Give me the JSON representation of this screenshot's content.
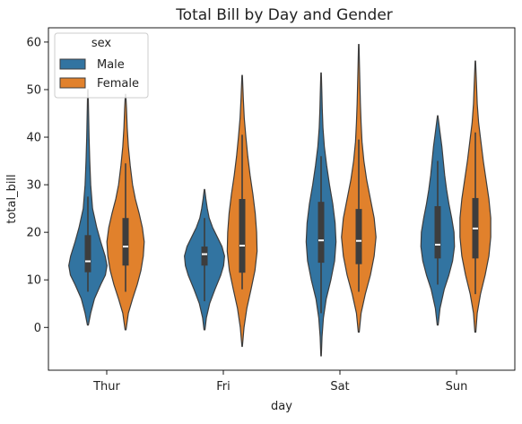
{
  "chart_data": {
    "type": "violin",
    "title": "Total Bill by Day and Gender",
    "xlabel": "day",
    "ylabel": "total_bill",
    "categories": [
      "Thur",
      "Fri",
      "Sat",
      "Sun"
    ],
    "ylim": [
      -9,
      63
    ],
    "yticks": [
      0,
      10,
      20,
      30,
      40,
      50,
      60
    ],
    "grid": false,
    "legend": {
      "title": "sex",
      "position": "top-left"
    },
    "colors": {
      "Male": "#3274a1",
      "Female": "#e1812c",
      "edge": "#3d3d3d",
      "box": "#3d3d3d",
      "median": "#ffffff"
    },
    "series": [
      {
        "name": "Male",
        "violins": [
          {
            "min": 0.5,
            "max": 50,
            "q1": 11.6,
            "median": 13.9,
            "q3": 19.4,
            "whisker_low": 7.5,
            "whisker_high": 27.5,
            "width": [
              [
                0.5,
                0.02
              ],
              [
                3,
                0.12
              ],
              [
                6,
                0.28
              ],
              [
                9,
                0.55
              ],
              [
                11,
                0.75
              ],
              [
                13,
                0.82
              ],
              [
                15,
                0.74
              ],
              [
                18,
                0.55
              ],
              [
                21,
                0.38
              ],
              [
                25,
                0.2
              ],
              [
                30,
                0.12
              ],
              [
                35,
                0.08
              ],
              [
                40,
                0.05
              ],
              [
                45,
                0.03
              ],
              [
                50,
                0.01
              ]
            ]
          },
          {
            "min": -0.5,
            "max": 29,
            "q1": 13.0,
            "median": 15.4,
            "q3": 17.0,
            "whisker_low": 5.5,
            "whisker_high": 23,
            "width": [
              [
                -0.5,
                0.02
              ],
              [
                2,
                0.08
              ],
              [
                5,
                0.22
              ],
              [
                8,
                0.45
              ],
              [
                11,
                0.7
              ],
              [
                13,
                0.82
              ],
              [
                15,
                0.86
              ],
              [
                17,
                0.75
              ],
              [
                19,
                0.55
              ],
              [
                21,
                0.35
              ],
              [
                23,
                0.2
              ],
              [
                25,
                0.12
              ],
              [
                27,
                0.06
              ],
              [
                29,
                0.01
              ]
            ]
          },
          {
            "min": -6,
            "max": 53.5,
            "q1": 13.6,
            "median": 18.3,
            "q3": 26.4,
            "whisker_low": 3,
            "whisker_high": 36,
            "width": [
              [
                -6,
                0.01
              ],
              [
                -2,
                0.04
              ],
              [
                2,
                0.1
              ],
              [
                6,
                0.22
              ],
              [
                10,
                0.42
              ],
              [
                14,
                0.58
              ],
              [
                18,
                0.64
              ],
              [
                22,
                0.6
              ],
              [
                26,
                0.5
              ],
              [
                30,
                0.36
              ],
              [
                34,
                0.24
              ],
              [
                38,
                0.14
              ],
              [
                42,
                0.08
              ],
              [
                46,
                0.05
              ],
              [
                50,
                0.03
              ],
              [
                53.5,
                0.01
              ]
            ]
          },
          {
            "min": 0.5,
            "max": 44.5,
            "q1": 14.5,
            "median": 17.4,
            "q3": 25.5,
            "whisker_low": 9,
            "whisker_high": 35,
            "width": [
              [
                0.5,
                0.02
              ],
              [
                4,
                0.1
              ],
              [
                8,
                0.28
              ],
              [
                11,
                0.48
              ],
              [
                14,
                0.64
              ],
              [
                17,
                0.72
              ],
              [
                20,
                0.7
              ],
              [
                23,
                0.6
              ],
              [
                26,
                0.48
              ],
              [
                29,
                0.38
              ],
              [
                32,
                0.3
              ],
              [
                35,
                0.24
              ],
              [
                38,
                0.18
              ],
              [
                41,
                0.1
              ],
              [
                44.5,
                0.01
              ]
            ]
          }
        ]
      },
      {
        "name": "Female",
        "violins": [
          {
            "min": -0.5,
            "max": 49,
            "q1": 13.0,
            "median": 17.0,
            "q3": 23.0,
            "whisker_low": 7.5,
            "whisker_high": 34.5,
            "width": [
              [
                -0.5,
                0.02
              ],
              [
                3,
                0.12
              ],
              [
                6,
                0.3
              ],
              [
                9,
                0.5
              ],
              [
                12,
                0.66
              ],
              [
                15,
                0.76
              ],
              [
                18,
                0.8
              ],
              [
                21,
                0.72
              ],
              [
                24,
                0.58
              ],
              [
                27,
                0.42
              ],
              [
                30,
                0.3
              ],
              [
                34,
                0.2
              ],
              [
                38,
                0.12
              ],
              [
                42,
                0.07
              ],
              [
                46,
                0.04
              ],
              [
                49,
                0.01
              ]
            ]
          },
          {
            "min": -4,
            "max": 53,
            "q1": 11.5,
            "median": 17.2,
            "q3": 27.0,
            "whisker_low": 8,
            "whisker_high": 40.5,
            "width": [
              [
                -4,
                0.01
              ],
              [
                0,
                0.08
              ],
              [
                4,
                0.2
              ],
              [
                8,
                0.38
              ],
              [
                12,
                0.55
              ],
              [
                16,
                0.64
              ],
              [
                20,
                0.62
              ],
              [
                24,
                0.56
              ],
              [
                28,
                0.46
              ],
              [
                32,
                0.34
              ],
              [
                36,
                0.24
              ],
              [
                40,
                0.16
              ],
              [
                44,
                0.09
              ],
              [
                48,
                0.05
              ],
              [
                53,
                0.01
              ]
            ]
          },
          {
            "min": -1,
            "max": 59.5,
            "q1": 13.3,
            "median": 18.2,
            "q3": 24.9,
            "whisker_low": 7.5,
            "whisker_high": 39.5,
            "width": [
              [
                -1,
                0.02
              ],
              [
                3,
                0.1
              ],
              [
                7,
                0.28
              ],
              [
                11,
                0.5
              ],
              [
                15,
                0.66
              ],
              [
                19,
                0.74
              ],
              [
                23,
                0.66
              ],
              [
                27,
                0.5
              ],
              [
                31,
                0.34
              ],
              [
                35,
                0.22
              ],
              [
                39,
                0.14
              ],
              [
                43,
                0.1
              ],
              [
                47,
                0.07
              ],
              [
                51,
                0.05
              ],
              [
                55,
                0.03
              ],
              [
                59.5,
                0.01
              ]
            ]
          },
          {
            "min": -1,
            "max": 56,
            "q1": 14.5,
            "median": 20.8,
            "q3": 27.2,
            "whisker_low": 7,
            "whisker_high": 41,
            "width": [
              [
                -1,
                0.02
              ],
              [
                3,
                0.08
              ],
              [
                7,
                0.22
              ],
              [
                11,
                0.42
              ],
              [
                15,
                0.58
              ],
              [
                19,
                0.66
              ],
              [
                23,
                0.66
              ],
              [
                27,
                0.58
              ],
              [
                31,
                0.46
              ],
              [
                35,
                0.34
              ],
              [
                39,
                0.24
              ],
              [
                43,
                0.14
              ],
              [
                47,
                0.08
              ],
              [
                51,
                0.05
              ],
              [
                56,
                0.01
              ]
            ]
          }
        ]
      }
    ]
  }
}
